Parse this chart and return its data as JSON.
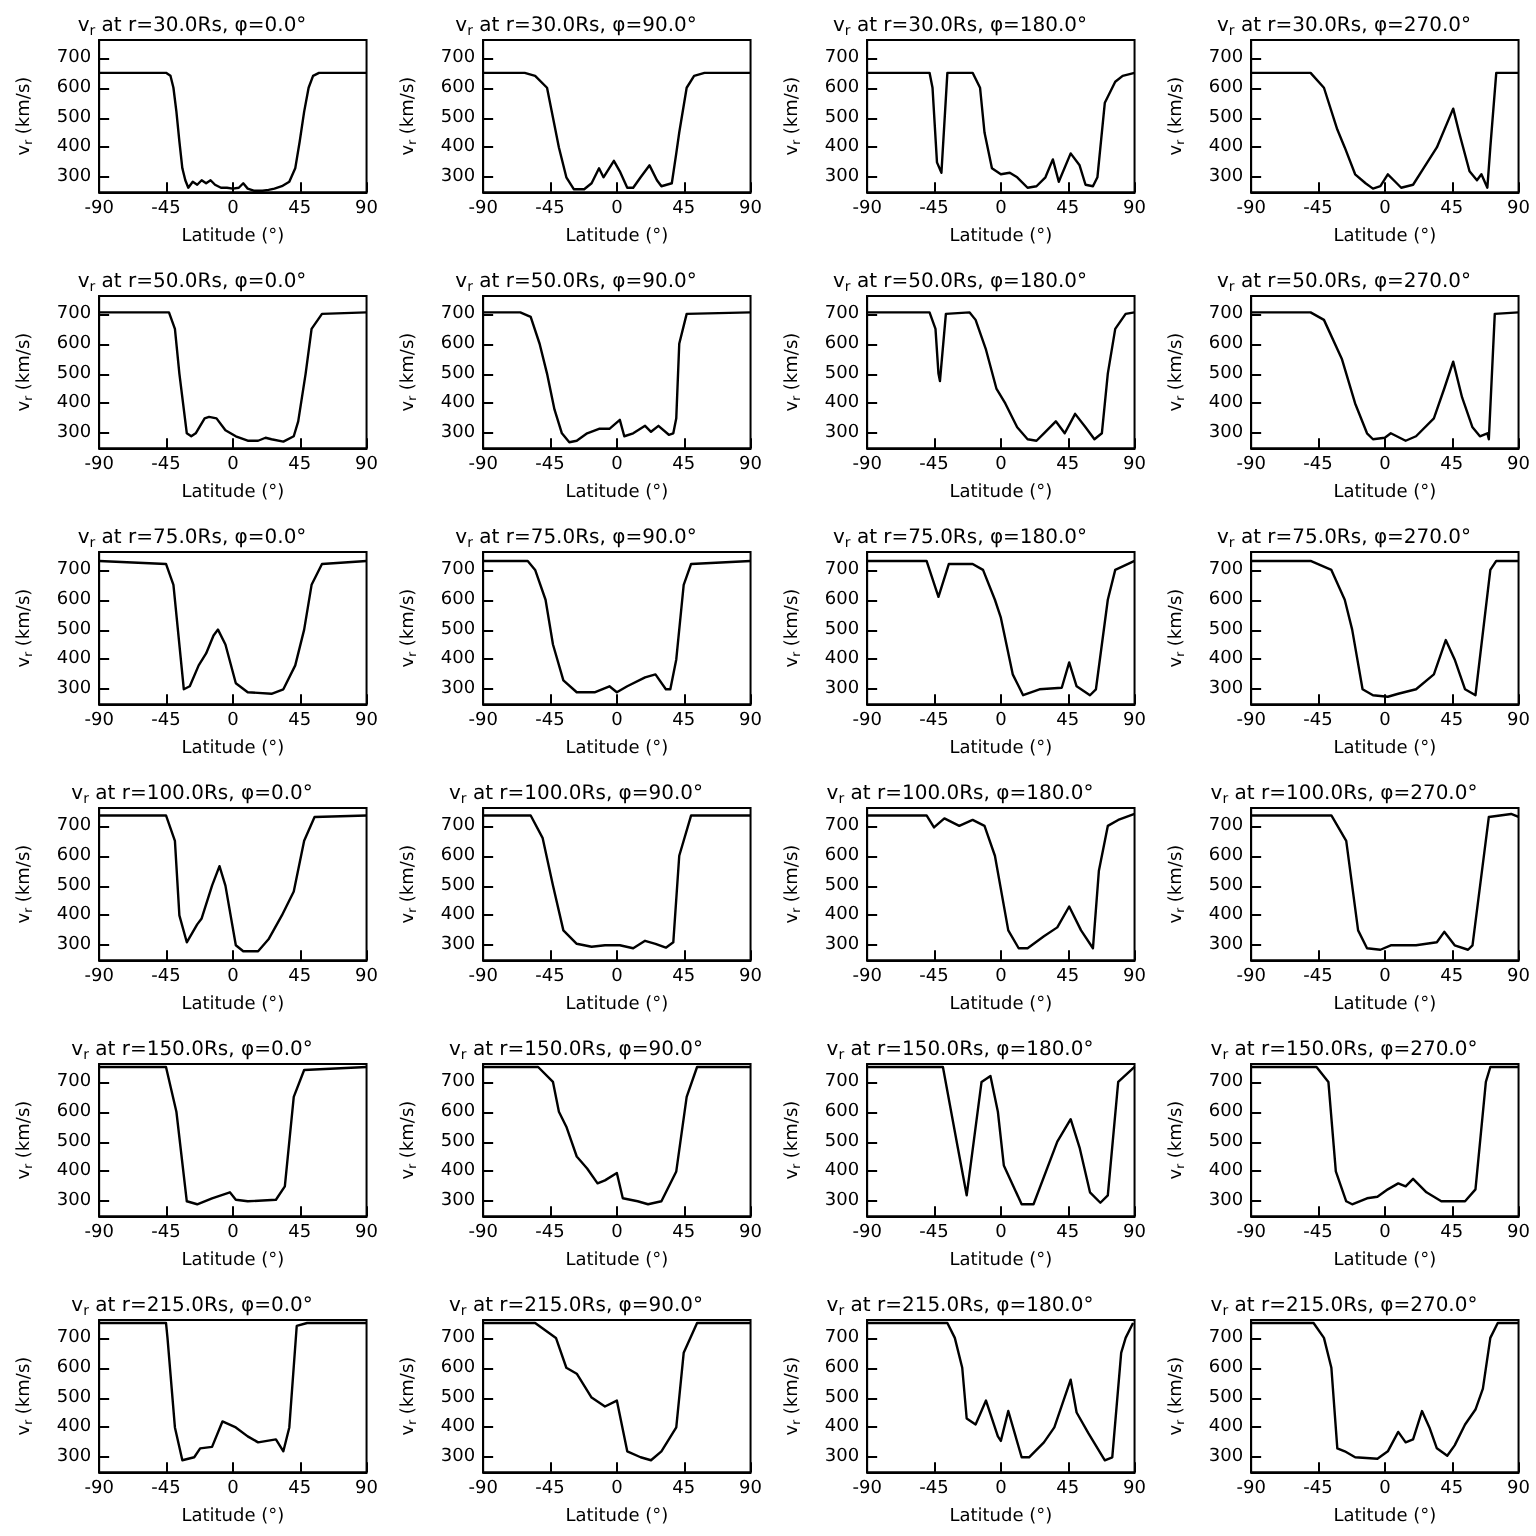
{
  "chart_data": [
    {
      "type": "line",
      "title": "v$_{r}$ at r=30.0Rs, φ=0.0°",
      "xlabel": "Latitude (°)",
      "ylabel": "v$_{r}$ (km/s)",
      "color": "#000000",
      "marker": "none",
      "xlim": [
        -90,
        90
      ],
      "xticks": [
        -90,
        -45,
        0,
        45,
        90
      ],
      "ylim": [
        250,
        760
      ],
      "yticks": [
        300,
        400,
        500,
        600,
        700
      ],
      "x": [
        -90,
        -45,
        -42,
        -40,
        -38,
        -36,
        -34,
        -32,
        -30,
        -27,
        -24,
        -21,
        -18,
        -15,
        -12,
        -8,
        -4,
        0,
        4,
        7,
        10,
        14,
        20,
        24,
        28,
        33,
        38,
        42,
        45,
        48,
        51,
        54,
        58,
        90
      ],
      "values": [
        650,
        650,
        640,
        600,
        520,
        420,
        330,
        290,
        265,
        285,
        275,
        290,
        280,
        290,
        275,
        265,
        265,
        262,
        265,
        280,
        262,
        255,
        255,
        258,
        262,
        270,
        285,
        330,
        420,
        520,
        600,
        640,
        650,
        650
      ]
    },
    {
      "type": "line",
      "title": "v$_{r}$ at r=30.0Rs, φ=90.0°",
      "xlabel": "Latitude (°)",
      "ylabel": "v$_{r}$ (km/s)",
      "color": "#000000",
      "marker": "none",
      "xlim": [
        -90,
        90
      ],
      "xticks": [
        -90,
        -45,
        0,
        45,
        90
      ],
      "ylim": [
        250,
        760
      ],
      "yticks": [
        300,
        400,
        500,
        600,
        700
      ],
      "x": [
        -90,
        -62,
        -55,
        -47,
        -39,
        -34,
        -29,
        -22,
        -17,
        -12,
        -9,
        -2,
        2,
        7,
        11,
        16,
        22,
        27,
        30,
        37,
        40,
        42,
        47,
        52,
        59,
        90
      ],
      "values": [
        650,
        650,
        640,
        600,
        400,
        300,
        260,
        260,
        280,
        330,
        300,
        355,
        320,
        265,
        265,
        300,
        340,
        290,
        270,
        280,
        380,
        450,
        600,
        640,
        650,
        650
      ]
    },
    {
      "type": "line",
      "title": "v$_{r}$ at r=30.0Rs, φ=180.0°",
      "xlabel": "Latitude (°)",
      "ylabel": "v$_{r}$ (km/s)",
      "color": "#000000",
      "marker": "none",
      "xlim": [
        -90,
        90
      ],
      "xticks": [
        -90,
        -45,
        0,
        45,
        90
      ],
      "ylim": [
        250,
        760
      ],
      "yticks": [
        300,
        400,
        500,
        600,
        700
      ],
      "x": [
        -90,
        -48,
        -46,
        -43,
        -40,
        -36,
        -19,
        -14,
        -11,
        -6,
        0,
        6,
        11,
        18,
        24,
        30,
        35,
        39,
        47,
        53,
        57,
        62,
        65,
        70,
        77,
        82,
        90
      ],
      "values": [
        650,
        650,
        600,
        350,
        315,
        650,
        650,
        600,
        450,
        330,
        310,
        315,
        300,
        265,
        270,
        300,
        360,
        285,
        380,
        340,
        275,
        270,
        300,
        550,
        620,
        640,
        650
      ]
    },
    {
      "type": "line",
      "title": "v$_{r}$ at r=30.0Rs, φ=270.0°",
      "xlabel": "Latitude (°)",
      "ylabel": "v$_{r}$ (km/s)",
      "color": "#000000",
      "marker": "none",
      "xlim": [
        -90,
        90
      ],
      "xticks": [
        -90,
        -45,
        0,
        45,
        90
      ],
      "ylim": [
        250,
        760
      ],
      "yticks": [
        300,
        400,
        500,
        600,
        700
      ],
      "x": [
        -90,
        -50,
        -41,
        -32,
        -27,
        -20,
        -13,
        -8,
        -3,
        2,
        7,
        11,
        19,
        26,
        35,
        46,
        50,
        57,
        62,
        65,
        69,
        71,
        75,
        90
      ],
      "values": [
        650,
        650,
        600,
        460,
        400,
        310,
        280,
        262,
        270,
        310,
        285,
        265,
        275,
        330,
        400,
        530,
        450,
        320,
        290,
        310,
        265,
        400,
        650,
        650
      ]
    },
    {
      "type": "line",
      "title": "v$_{r}$ at r=50.0Rs, φ=0.0°",
      "xlabel": "Latitude (°)",
      "ylabel": "v$_{r}$ (km/s)",
      "color": "#000000",
      "marker": "none",
      "xlim": [
        -90,
        90
      ],
      "xticks": [
        -90,
        -45,
        0,
        45,
        90
      ],
      "ylim": [
        250,
        760
      ],
      "yticks": [
        300,
        400,
        500,
        600,
        700
      ],
      "x": [
        -90,
        -43,
        -39,
        -36,
        -31,
        -28,
        -25,
        -19,
        -16,
        -11,
        -5,
        2,
        10,
        17,
        22,
        26,
        34,
        41,
        44,
        49,
        53,
        60,
        90
      ],
      "values": [
        705,
        705,
        650,
        500,
        300,
        290,
        300,
        350,
        355,
        350,
        310,
        290,
        275,
        275,
        285,
        280,
        272,
        290,
        340,
        500,
        650,
        700,
        705
      ]
    },
    {
      "type": "line",
      "title": "v$_{r}$ at r=50.0Rs, φ=90.0°",
      "xlabel": "Latitude (°)",
      "ylabel": "v$_{r}$ (km/s)",
      "color": "#000000",
      "marker": "none",
      "xlim": [
        -90,
        90
      ],
      "xticks": [
        -90,
        -45,
        0,
        45,
        90
      ],
      "ylim": [
        250,
        760
      ],
      "yticks": [
        300,
        400,
        500,
        600,
        700
      ],
      "x": [
        -90,
        -65,
        -58,
        -52,
        -47,
        -42,
        -37,
        -32,
        -27,
        -20,
        -12,
        -5,
        2,
        5,
        11,
        19,
        23,
        28,
        35,
        38,
        40,
        42,
        47,
        90
      ],
      "values": [
        705,
        705,
        690,
        600,
        500,
        380,
        300,
        270,
        275,
        300,
        315,
        315,
        345,
        290,
        300,
        325,
        305,
        325,
        295,
        300,
        350,
        600,
        700,
        705
      ]
    },
    {
      "type": "line",
      "title": "v$_{r}$ at r=50.0Rs, φ=180.0°",
      "xlabel": "Latitude (°)",
      "ylabel": "v$_{r}$ (km/s)",
      "color": "#000000",
      "marker": "none",
      "xlim": [
        -90,
        90
      ],
      "xticks": [
        -90,
        -45,
        0,
        45,
        90
      ],
      "ylim": [
        250,
        760
      ],
      "yticks": [
        300,
        400,
        500,
        600,
        700
      ],
      "x": [
        -90,
        -48,
        -44,
        -42,
        -41,
        -37,
        -21,
        -17,
        -10,
        -3,
        3,
        11,
        18,
        24,
        29,
        37,
        43,
        50,
        57,
        63,
        68,
        72,
        77,
        84,
        90
      ],
      "values": [
        705,
        705,
        650,
        500,
        475,
        700,
        705,
        680,
        580,
        450,
        400,
        320,
        280,
        275,
        300,
        340,
        300,
        365,
        320,
        280,
        300,
        500,
        650,
        700,
        705
      ]
    },
    {
      "type": "line",
      "title": "v$_{r}$ at r=50.0Rs, φ=270.0°",
      "xlabel": "Latitude (°)",
      "ylabel": "v$_{r}$ (km/s)",
      "color": "#000000",
      "marker": "none",
      "xlim": [
        -90,
        90
      ],
      "xticks": [
        -90,
        -45,
        0,
        45,
        90
      ],
      "ylim": [
        250,
        760
      ],
      "yticks": [
        300,
        400,
        500,
        600,
        700
      ],
      "x": [
        -90,
        -50,
        -41,
        -29,
        -20,
        -12,
        -8,
        0,
        4,
        14,
        21,
        33,
        40,
        46,
        52,
        59,
        64,
        69,
        70,
        74,
        90
      ],
      "values": [
        705,
        705,
        680,
        550,
        400,
        300,
        280,
        285,
        300,
        275,
        290,
        350,
        450,
        540,
        420,
        320,
        290,
        300,
        280,
        700,
        705
      ]
    },
    {
      "type": "line",
      "title": "v$_{r}$ at r=75.0Rs, φ=0.0°",
      "xlabel": "Latitude (°)",
      "ylabel": "v$_{r}$ (km/s)",
      "color": "#000000",
      "marker": "none",
      "xlim": [
        -90,
        90
      ],
      "xticks": [
        -90,
        -45,
        0,
        45,
        90
      ],
      "ylim": [
        250,
        760
      ],
      "yticks": [
        300,
        400,
        500,
        600,
        700
      ],
      "x": [
        -90,
        -45,
        -40,
        -33,
        -29,
        -23,
        -18,
        -13,
        -10,
        -5,
        2,
        10,
        26,
        34,
        42,
        48,
        53,
        60,
        90
      ],
      "values": [
        730,
        720,
        650,
        300,
        310,
        380,
        420,
        480,
        500,
        450,
        320,
        290,
        285,
        300,
        380,
        500,
        650,
        720,
        730
      ]
    },
    {
      "type": "line",
      "title": "v$_{r}$ at r=75.0Rs, φ=90.0°",
      "xlabel": "Latitude (°)",
      "ylabel": "v$_{r}$ (km/s)",
      "color": "#000000",
      "marker": "none",
      "xlim": [
        -90,
        90
      ],
      "xticks": [
        -90,
        -45,
        0,
        45,
        90
      ],
      "ylim": [
        250,
        760
      ],
      "yticks": [
        300,
        400,
        500,
        600,
        700
      ],
      "x": [
        -90,
        -60,
        -55,
        -48,
        -43,
        -36,
        -27,
        -15,
        -5,
        0,
        7,
        19,
        26,
        33,
        36,
        40,
        45,
        50,
        90
      ],
      "values": [
        730,
        730,
        700,
        600,
        450,
        330,
        290,
        290,
        310,
        290,
        310,
        340,
        350,
        300,
        300,
        400,
        650,
        720,
        730
      ]
    },
    {
      "type": "line",
      "title": "v$_{r}$ at r=75.0Rs, φ=180.0°",
      "xlabel": "Latitude (°)",
      "ylabel": "v$_{r}$ (km/s)",
      "color": "#000000",
      "marker": "none",
      "xlim": [
        -90,
        90
      ],
      "xticks": [
        -90,
        -45,
        0,
        45,
        90
      ],
      "ylim": [
        250,
        760
      ],
      "yticks": [
        300,
        400,
        500,
        600,
        700
      ],
      "x": [
        -90,
        -50,
        -42,
        -35,
        -19,
        -12,
        -4,
        0,
        8,
        15,
        26,
        41,
        46,
        51,
        60,
        64,
        72,
        77,
        90
      ],
      "values": [
        730,
        730,
        610,
        720,
        720,
        700,
        600,
        540,
        350,
        280,
        300,
        305,
        390,
        310,
        280,
        300,
        600,
        700,
        730
      ]
    },
    {
      "type": "line",
      "title": "v$_{r}$ at r=75.0Rs, φ=270.0°",
      "xlabel": "Latitude (°)",
      "ylabel": "v$_{r}$ (km/s)",
      "color": "#000000",
      "marker": "none",
      "xlim": [
        -90,
        90
      ],
      "xticks": [
        -90,
        -45,
        0,
        45,
        90
      ],
      "ylim": [
        250,
        760
      ],
      "yticks": [
        300,
        400,
        500,
        600,
        700
      ],
      "x": [
        -90,
        -50,
        -36,
        -27,
        -22,
        -15,
        -8,
        2,
        9,
        21,
        33,
        41,
        47,
        54,
        61,
        71,
        75,
        90
      ],
      "values": [
        730,
        730,
        700,
        600,
        500,
        300,
        280,
        275,
        285,
        300,
        350,
        465,
        400,
        300,
        280,
        700,
        730,
        730
      ]
    },
    {
      "type": "line",
      "title": "v$_{r}$ at r=100.0Rs, φ=0.0°",
      "xlabel": "Latitude (°)",
      "ylabel": "v$_{r}$ (km/s)",
      "color": "#000000",
      "marker": "none",
      "xlim": [
        -90,
        90
      ],
      "xticks": [
        -90,
        -45,
        0,
        45,
        90
      ],
      "ylim": [
        250,
        760
      ],
      "yticks": [
        300,
        400,
        500,
        600,
        700
      ],
      "x": [
        -90,
        -45,
        -39,
        -36,
        -31,
        -24,
        -21,
        -14,
        -9,
        -5,
        2,
        7,
        17,
        24,
        33,
        41,
        48,
        55,
        90
      ],
      "values": [
        735,
        735,
        650,
        400,
        310,
        370,
        390,
        500,
        565,
        500,
        300,
        280,
        280,
        320,
        400,
        480,
        650,
        730,
        735
      ]
    },
    {
      "type": "line",
      "title": "v$_{r}$ at r=100.0Rs, φ=90.0°",
      "xlabel": "Latitude (°)",
      "ylabel": "v$_{r}$ (km/s)",
      "color": "#000000",
      "marker": "none",
      "xlim": [
        -90,
        90
      ],
      "xticks": [
        -90,
        -45,
        0,
        45,
        90
      ],
      "ylim": [
        250,
        760
      ],
      "yticks": [
        300,
        400,
        500,
        600,
        700
      ],
      "x": [
        -90,
        -58,
        -50,
        -43,
        -36,
        -27,
        -17,
        -8,
        2,
        11,
        19,
        26,
        33,
        38,
        42,
        50,
        90
      ],
      "values": [
        735,
        735,
        660,
        500,
        350,
        305,
        295,
        300,
        300,
        290,
        315,
        305,
        292,
        310,
        600,
        735,
        735
      ]
    },
    {
      "type": "line",
      "title": "v$_{r}$ at r=100.0Rs, φ=180.0°",
      "xlabel": "Latitude (°)",
      "ylabel": "v$_{r}$ (km/s)",
      "color": "#000000",
      "marker": "none",
      "xlim": [
        -90,
        90
      ],
      "xticks": [
        -90,
        -45,
        0,
        45,
        90
      ],
      "ylim": [
        250,
        760
      ],
      "yticks": [
        300,
        400,
        500,
        600,
        700
      ],
      "x": [
        -90,
        -50,
        -45,
        -38,
        -28,
        -19,
        -11,
        -4,
        5,
        12,
        18,
        29,
        38,
        46,
        54,
        62,
        66,
        72,
        79,
        90
      ],
      "values": [
        735,
        735,
        695,
        725,
        700,
        720,
        700,
        600,
        350,
        290,
        290,
        330,
        360,
        430,
        350,
        290,
        550,
        700,
        720,
        740
      ]
    },
    {
      "type": "line",
      "title": "v$_{r}$ at r=100.0Rs, φ=270.0°",
      "xlabel": "Latitude (°)",
      "ylabel": "v$_{r}$ (km/s)",
      "color": "#000000",
      "marker": "none",
      "xlim": [
        -90,
        90
      ],
      "xticks": [
        -90,
        -45,
        0,
        45,
        90
      ],
      "ylim": [
        250,
        760
      ],
      "yticks": [
        300,
        400,
        500,
        600,
        700
      ],
      "x": [
        -90,
        -36,
        -26,
        -18,
        -12,
        -3,
        4,
        21,
        35,
        40,
        47,
        56,
        59,
        70,
        85,
        90
      ],
      "values": [
        735,
        735,
        650,
        350,
        290,
        285,
        300,
        300,
        310,
        345,
        300,
        285,
        300,
        730,
        740,
        730
      ]
    },
    {
      "type": "line",
      "title": "v$_{r}$ at r=150.0Rs, φ=0.0°",
      "xlabel": "Latitude (°)",
      "ylabel": "v$_{r}$ (km/s)",
      "color": "#000000",
      "marker": "none",
      "xlim": [
        -90,
        90
      ],
      "xticks": [
        -90,
        -45,
        0,
        45,
        90
      ],
      "ylim": [
        250,
        760
      ],
      "yticks": [
        300,
        400,
        500,
        600,
        700
      ],
      "x": [
        -90,
        -45,
        -38,
        -31,
        -24,
        -14,
        -2,
        2,
        10,
        29,
        35,
        41,
        48,
        90
      ],
      "values": [
        750,
        750,
        600,
        300,
        290,
        310,
        330,
        305,
        300,
        305,
        350,
        650,
        740,
        750
      ]
    },
    {
      "type": "line",
      "title": "v$_{r}$ at r=150.0Rs, φ=90.0°",
      "xlabel": "Latitude (°)",
      "ylabel": "v$_{r}$ (km/s)",
      "color": "#000000",
      "marker": "none",
      "xlim": [
        -90,
        90
      ],
      "xticks": [
        -90,
        -45,
        0,
        45,
        90
      ],
      "ylim": [
        250,
        760
      ],
      "yticks": [
        300,
        400,
        500,
        600,
        700
      ],
      "x": [
        -90,
        -53,
        -43,
        -39,
        -34,
        -27,
        -20,
        -13,
        -8,
        0,
        4,
        14,
        21,
        30,
        40,
        47,
        54,
        90
      ],
      "values": [
        750,
        750,
        700,
        600,
        550,
        450,
        410,
        360,
        370,
        395,
        310,
        300,
        290,
        300,
        400,
        650,
        750,
        750
      ]
    },
    {
      "type": "line",
      "title": "v$_{r}$ at r=150.0Rs, φ=180.0°",
      "xlabel": "Latitude (°)",
      "ylabel": "v$_{r}$ (km/s)",
      "color": "#000000",
      "marker": "none",
      "xlim": [
        -90,
        90
      ],
      "xticks": [
        -90,
        -45,
        0,
        45,
        90
      ],
      "ylim": [
        250,
        760
      ],
      "yticks": [
        300,
        400,
        500,
        600,
        700
      ],
      "x": [
        -90,
        -39,
        -29,
        -23,
        -13,
        -7,
        -2,
        2,
        14,
        22,
        38,
        47,
        53,
        60,
        67,
        72,
        79,
        90
      ],
      "values": [
        750,
        750,
        480,
        320,
        700,
        720,
        600,
        420,
        290,
        290,
        500,
        575,
        480,
        330,
        295,
        320,
        700,
        750
      ]
    },
    {
      "type": "line",
      "title": "v$_{r}$ at r=150.0Rs, φ=270.0°",
      "xlabel": "Latitude (°)",
      "ylabel": "v$_{r}$ (km/s)",
      "color": "#000000",
      "marker": "none",
      "xlim": [
        -90,
        90
      ],
      "xticks": [
        -90,
        -45,
        0,
        45,
        90
      ],
      "ylim": [
        250,
        760
      ],
      "yticks": [
        300,
        400,
        500,
        600,
        700
      ],
      "x": [
        -90,
        -46,
        -38,
        -33,
        -26,
        -22,
        -12,
        -5,
        2,
        9,
        14,
        19,
        28,
        38,
        54,
        61,
        68,
        71,
        90
      ],
      "values": [
        750,
        750,
        700,
        400,
        300,
        290,
        310,
        315,
        340,
        360,
        350,
        375,
        330,
        300,
        300,
        340,
        700,
        750,
        750
      ]
    },
    {
      "type": "line",
      "title": "v$_{r}$ at r=215.0Rs, φ=0.0°",
      "xlabel": "Latitude (°)",
      "ylabel": "v$_{r}$ (km/s)",
      "color": "#000000",
      "marker": "none",
      "xlim": [
        -90,
        90
      ],
      "xticks": [
        -90,
        -45,
        0,
        45,
        90
      ],
      "ylim": [
        250,
        760
      ],
      "yticks": [
        300,
        400,
        500,
        600,
        700
      ],
      "x": [
        -90,
        -45,
        -44,
        -39,
        -34,
        -26,
        -22,
        -14,
        -7,
        2,
        10,
        17,
        29,
        34,
        38,
        43,
        50,
        90
      ],
      "values": [
        750,
        750,
        700,
        400,
        290,
        300,
        330,
        335,
        420,
        400,
        370,
        350,
        360,
        320,
        400,
        740,
        750,
        750
      ]
    },
    {
      "type": "line",
      "title": "v$_{r}$ at r=215.0Rs, φ=90.0°",
      "xlabel": "Latitude (°)",
      "ylabel": "v$_{r}$ (km/s)",
      "color": "#000000",
      "marker": "none",
      "xlim": [
        -90,
        90
      ],
      "xticks": [
        -90,
        -45,
        0,
        45,
        90
      ],
      "ylim": [
        250,
        760
      ],
      "yticks": [
        300,
        400,
        500,
        600,
        700
      ],
      "x": [
        -90,
        -55,
        -41,
        -34,
        -27,
        -17,
        -8,
        0,
        7,
        16,
        23,
        30,
        40,
        45,
        54,
        90
      ],
      "values": [
        750,
        750,
        700,
        600,
        580,
        500,
        470,
        490,
        320,
        300,
        290,
        320,
        400,
        650,
        750,
        750
      ]
    },
    {
      "type": "line",
      "title": "v$_{r}$ at r=215.0Rs, φ=180.0°",
      "xlabel": "Latitude (°)",
      "ylabel": "v$_{r}$ (km/s)",
      "color": "#000000",
      "marker": "none",
      "xlim": [
        -90,
        90
      ],
      "xticks": [
        -90,
        -45,
        0,
        45,
        90
      ],
      "ylim": [
        250,
        760
      ],
      "yticks": [
        300,
        400,
        500,
        600,
        700
      ],
      "x": [
        -90,
        -36,
        -31,
        -26,
        -23,
        -17,
        -10,
        -2,
        0,
        5,
        14,
        19,
        29,
        36,
        47,
        51,
        59,
        70,
        75,
        81,
        84,
        89
      ],
      "values": [
        750,
        750,
        700,
        600,
        430,
        410,
        490,
        370,
        355,
        455,
        300,
        300,
        350,
        400,
        560,
        450,
        380,
        290,
        300,
        650,
        700,
        750
      ]
    },
    {
      "type": "line",
      "title": "v$_{r}$ at r=215.0Rs, φ=270.0°",
      "xlabel": "Latitude (°)",
      "ylabel": "v$_{r}$ (km/s)",
      "color": "#000000",
      "marker": "none",
      "xlim": [
        -90,
        90
      ],
      "xticks": [
        -90,
        -45,
        0,
        45,
        90
      ],
      "ylim": [
        250,
        760
      ],
      "yticks": [
        300,
        400,
        500,
        600,
        700
      ],
      "x": [
        -90,
        -48,
        -41,
        -36,
        -32,
        -27,
        -20,
        -5,
        2,
        9,
        14,
        19,
        25,
        30,
        35,
        42,
        47,
        54,
        61,
        66,
        71,
        76,
        90
      ],
      "values": [
        750,
        750,
        700,
        600,
        330,
        320,
        300,
        295,
        320,
        385,
        350,
        360,
        455,
        400,
        330,
        305,
        340,
        410,
        460,
        530,
        700,
        750,
        750
      ]
    }
  ]
}
